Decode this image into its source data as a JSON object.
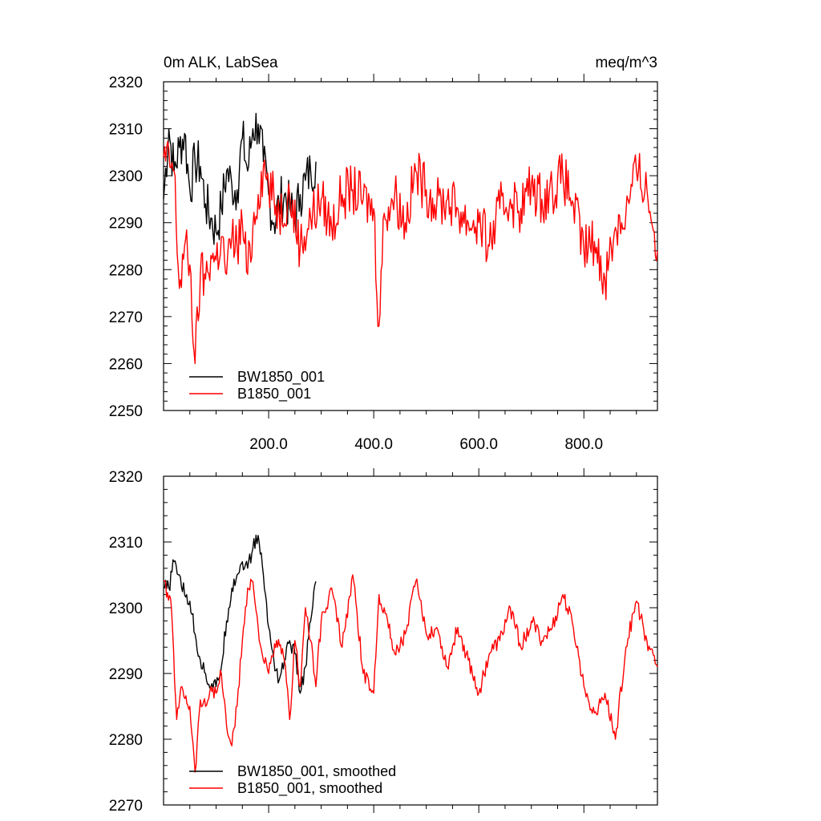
{
  "figure": {
    "title_left": "0m ALK, LabSea",
    "title_right": "meq/m^3"
  },
  "chart_data": [
    {
      "type": "line",
      "title": "0m ALK, LabSea",
      "units": "meq/m^3",
      "xlim": [
        0,
        940
      ],
      "ylim": [
        2250,
        2320
      ],
      "xticks": [
        200,
        400,
        600,
        800
      ],
      "xtick_labels": [
        "200.0",
        "400.0",
        "600.0",
        "800.0"
      ],
      "yticks": [
        2250,
        2260,
        2270,
        2280,
        2290,
        2300,
        2310,
        2320
      ],
      "ytick_labels": [
        "2250",
        "2260",
        "2270",
        "2280",
        "2290",
        "2300",
        "2310",
        "2320"
      ],
      "legend": [
        "BW1850_001",
        "B1850_001"
      ],
      "legend_position": "bottom-left",
      "series": [
        {
          "name": "BW1850_001",
          "color": "#000000",
          "x": [
            0,
            10,
            20,
            30,
            40,
            50,
            60,
            70,
            80,
            90,
            100,
            110,
            120,
            130,
            140,
            150,
            160,
            170,
            180,
            190,
            200,
            210,
            220,
            230,
            240,
            250,
            260,
            270,
            280,
            290
          ],
          "values": [
            2295,
            2310,
            2301,
            2306,
            2309,
            2297,
            2303,
            2302,
            2294,
            2291,
            2288,
            2293,
            2301,
            2298,
            2297,
            2308,
            2301,
            2310,
            2311,
            2303,
            2296,
            2290,
            2294,
            2296,
            2293,
            2291,
            2296,
            2299,
            2301,
            2303
          ]
        },
        {
          "name": "B1850_001",
          "color": "#ff0000",
          "x": [
            0,
            20,
            30,
            40,
            50,
            60,
            70,
            80,
            90,
            100,
            110,
            120,
            130,
            140,
            150,
            160,
            170,
            180,
            190,
            200,
            220,
            240,
            260,
            280,
            300,
            320,
            340,
            360,
            380,
            400,
            410,
            420,
            440,
            460,
            480,
            500,
            520,
            540,
            560,
            580,
            600,
            620,
            640,
            660,
            680,
            700,
            720,
            740,
            760,
            780,
            800,
            820,
            840,
            860,
            880,
            900,
            920,
            940
          ],
          "values": [
            2304,
            2301,
            2276,
            2285,
            2281,
            2260,
            2279,
            2278,
            2283,
            2282,
            2287,
            2279,
            2287,
            2285,
            2290,
            2279,
            2289,
            2296,
            2302,
            2298,
            2292,
            2296,
            2285,
            2291,
            2295,
            2289,
            2296,
            2297,
            2295,
            2293,
            2268,
            2292,
            2296,
            2290,
            2301,
            2297,
            2294,
            2295,
            2293,
            2290,
            2290,
            2285,
            2293,
            2295,
            2293,
            2298,
            2295,
            2297,
            2300,
            2294,
            2284,
            2286,
            2278,
            2289,
            2292,
            2301,
            2297,
            2284
          ]
        }
      ]
    },
    {
      "type": "line",
      "title": "",
      "xlim": [
        0,
        940
      ],
      "ylim": [
        2270,
        2320
      ],
      "yticks": [
        2270,
        2280,
        2290,
        2300,
        2310,
        2320
      ],
      "ytick_labels": [
        "2270",
        "2280",
        "2290",
        "2300",
        "2310",
        "2320"
      ],
      "legend": [
        "BW1850_001, smoothed",
        "B1850_001, smoothed"
      ],
      "legend_position": "bottom-left",
      "series": [
        {
          "name": "BW1850_001, smoothed",
          "color": "#000000",
          "x": [
            0,
            10,
            20,
            30,
            40,
            50,
            60,
            70,
            80,
            90,
            100,
            110,
            120,
            130,
            140,
            150,
            160,
            170,
            180,
            190,
            200,
            210,
            220,
            230,
            240,
            250,
            260,
            270,
            280,
            290
          ],
          "values": [
            2303,
            2303,
            2307,
            2305,
            2302,
            2301,
            2296,
            2292,
            2290,
            2288,
            2288,
            2291,
            2298,
            2303,
            2305,
            2307,
            2306,
            2309,
            2311,
            2305,
            2297,
            2292,
            2289,
            2292,
            2295,
            2293,
            2287,
            2291,
            2298,
            2304
          ]
        },
        {
          "name": "B1850_001, smoothed",
          "color": "#ff0000",
          "x": [
            0,
            15,
            25,
            35,
            50,
            60,
            70,
            80,
            90,
            100,
            110,
            120,
            130,
            140,
            150,
            160,
            170,
            180,
            190,
            200,
            215,
            230,
            240,
            250,
            260,
            270,
            280,
            290,
            300,
            310,
            320,
            340,
            360,
            380,
            400,
            410,
            420,
            440,
            460,
            480,
            500,
            520,
            540,
            560,
            580,
            600,
            620,
            640,
            660,
            680,
            700,
            720,
            740,
            760,
            780,
            800,
            820,
            840,
            860,
            880,
            900,
            920,
            940
          ],
          "values": [
            2304,
            2300,
            2283,
            2288,
            2285,
            2275,
            2286,
            2285,
            2288,
            2287,
            2290,
            2282,
            2279,
            2285,
            2295,
            2303,
            2304,
            2297,
            2292,
            2290,
            2295,
            2292,
            2283,
            2295,
            2288,
            2300,
            2295,
            2288,
            2298,
            2300,
            2303,
            2294,
            2305,
            2290,
            2287,
            2302,
            2300,
            2293,
            2296,
            2304,
            2296,
            2297,
            2291,
            2297,
            2292,
            2287,
            2293,
            2295,
            2300,
            2294,
            2298,
            2295,
            2297,
            2302,
            2297,
            2288,
            2284,
            2287,
            2280,
            2294,
            2301,
            2295,
            2291
          ]
        }
      ]
    }
  ]
}
